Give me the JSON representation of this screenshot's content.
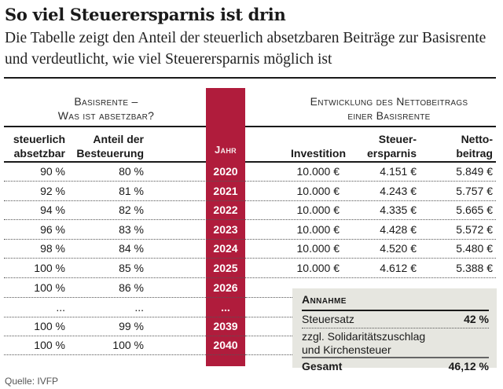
{
  "header": {
    "title": "So viel Steuerersparnis ist drin",
    "subtitle": "Die Tabelle zeigt den Anteil der steuerlich absetzbaren Beiträge zur Basisrente und verdeutlicht, wie viel Steuerersparnis möglich ist"
  },
  "groups": {
    "left_line1": "Basisrente –",
    "left_line2": "Was ist absetzbar?",
    "right_line1": "Entwicklung des Nettobeitrags",
    "right_line2": "einer Basisrente"
  },
  "columns": {
    "absetzbar_1": "steuerlich",
    "absetzbar_2": "absetzbar",
    "anteil_1": "Anteil der",
    "anteil_2": "Besteuerung",
    "jahr": "Jahr",
    "investition": "Investition",
    "steuer_1": "Steuer-",
    "steuer_2": "ersparnis",
    "netto_1": "Netto-",
    "netto_2": "beitrag"
  },
  "rows": [
    {
      "absetzbar": "90 %",
      "anteil": "80 %",
      "jahr": "2020",
      "investition": "10.000 €",
      "ersparnis": "4.151 €",
      "netto": "5.849 €"
    },
    {
      "absetzbar": "92 %",
      "anteil": "81 %",
      "jahr": "2021",
      "investition": "10.000 €",
      "ersparnis": "4.243 €",
      "netto": "5.757 €"
    },
    {
      "absetzbar": "94 %",
      "anteil": "82 %",
      "jahr": "2022",
      "investition": "10.000 €",
      "ersparnis": "4.335 €",
      "netto": "5.665 €"
    },
    {
      "absetzbar": "96 %",
      "anteil": "83 %",
      "jahr": "2023",
      "investition": "10.000 €",
      "ersparnis": "4.428 €",
      "netto": "5.572 €"
    },
    {
      "absetzbar": "98 %",
      "anteil": "84 %",
      "jahr": "2024",
      "investition": "10.000 €",
      "ersparnis": "4.520 €",
      "netto": "5.480 €"
    },
    {
      "absetzbar": "100 %",
      "anteil": "85 %",
      "jahr": "2025",
      "investition": "10.000 €",
      "ersparnis": "4.612 €",
      "netto": "5.388 €"
    },
    {
      "absetzbar": "100 %",
      "anteil": "86 %",
      "jahr": "2026"
    },
    {
      "absetzbar": "...",
      "anteil": "...",
      "jahr": "..."
    },
    {
      "absetzbar": "100 %",
      "anteil": "99 %",
      "jahr": "2039"
    },
    {
      "absetzbar": "100 %",
      "anteil": "100 %",
      "jahr": "2040"
    }
  ],
  "assumption": {
    "title": "Annahme",
    "steuersatz_label": "Steuersatz",
    "steuersatz_value": "42 %",
    "zuschlag_line1": "zzgl. Solidaritätszuschlag",
    "zuschlag_line2": "und Kirchensteuer",
    "gesamt_label": "Gesamt",
    "gesamt_value": "46,12 %"
  },
  "source": "Quelle: IVFP",
  "colors": {
    "accent_red": "#b01c3c",
    "box_gray": "#e6e6e0"
  }
}
